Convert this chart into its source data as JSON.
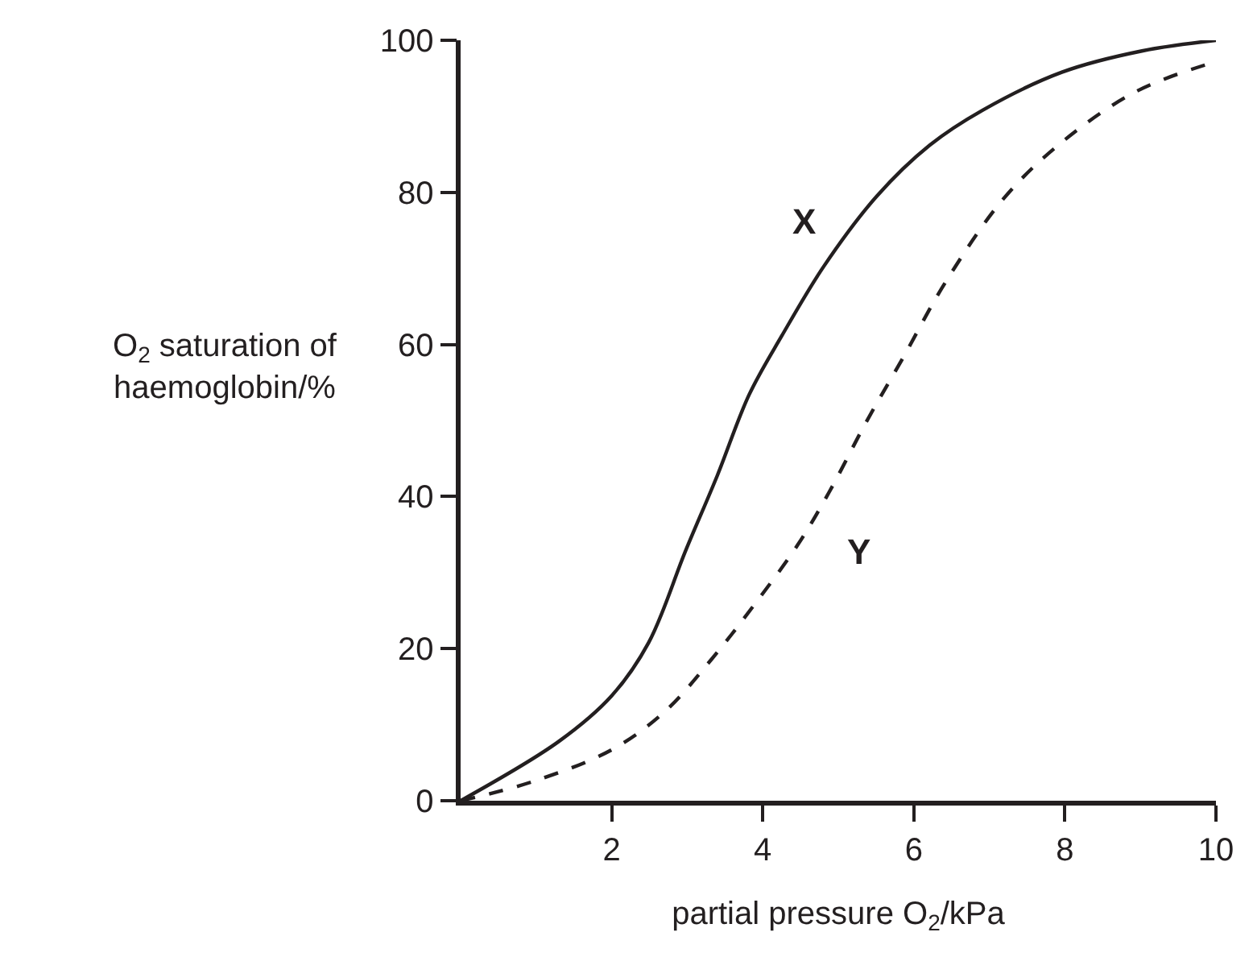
{
  "chart_data": {
    "type": "line",
    "xlabel": "partial pressure O$_{2}$/kPa",
    "ylabel": "O$_{2}$ saturation of\nhaemoglobin/%",
    "xlim": [
      0,
      10
    ],
    "xticks": [
      2,
      4,
      6,
      8,
      10
    ],
    "ylim": [
      0,
      100
    ],
    "yticks": [
      0,
      20,
      40,
      60,
      80,
      100
    ],
    "legend": false,
    "marker": "none",
    "series": [
      {
        "name": "X",
        "color": "#231f20",
        "line_style": "solid",
        "x": [
          0,
          1.3,
          2,
          2.49,
          2.98,
          3.4,
          3.82,
          4.25,
          4.81,
          5.51,
          6.21,
          6.91,
          7.96,
          9.02,
          10
        ],
        "values": [
          0,
          7.8,
          13.8,
          20.8,
          32.9,
          42.8,
          53.4,
          61.1,
          70.3,
          79.5,
          86.2,
          90.8,
          95.8,
          98.6,
          100
        ]
      },
      {
        "name": "Y",
        "color": "#231f20",
        "line_style": "dashed",
        "x": [
          0,
          0.95,
          2,
          2.7,
          3.33,
          3.89,
          4.46,
          4.88,
          5.37,
          5.86,
          6.42,
          7.19,
          7.96,
          8.95,
          10
        ],
        "values": [
          0,
          2.5,
          6.7,
          11.7,
          18.7,
          25.8,
          33.6,
          40.6,
          49.8,
          58.3,
          68.2,
          79.2,
          86.6,
          93.3,
          97.2
        ]
      }
    ]
  }
}
